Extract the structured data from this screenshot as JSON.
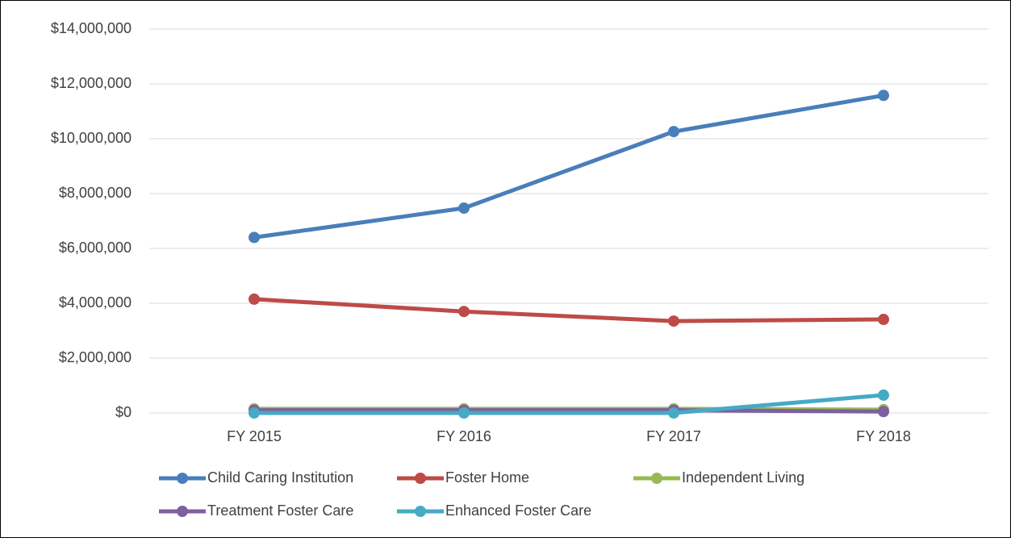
{
  "chart_data": {
    "type": "line",
    "categories": [
      "FY 2015",
      "FY 2016",
      "FY 2017",
      "FY 2018"
    ],
    "series": [
      {
        "name": "Child Caring Institution",
        "color": "#4a7ebb",
        "values": [
          6400000,
          7470000,
          10260000,
          11580000
        ]
      },
      {
        "name": "Foster Home",
        "color": "#be4b48",
        "values": [
          4150000,
          3700000,
          3350000,
          3410000
        ]
      },
      {
        "name": "Independent Living",
        "color": "#98b954",
        "values": [
          150000,
          150000,
          150000,
          120000
        ]
      },
      {
        "name": "Treatment Foster Care",
        "color": "#7d60a0",
        "values": [
          100000,
          100000,
          100000,
          50000
        ]
      },
      {
        "name": "Enhanced Foster Care",
        "color": "#46aac5",
        "values": [
          0,
          0,
          0,
          650000
        ]
      }
    ],
    "ylim": [
      0,
      14000000
    ],
    "yticks": [
      {
        "value": 0,
        "label": "$0"
      },
      {
        "value": 2000000,
        "label": "$2,000,000"
      },
      {
        "value": 4000000,
        "label": "$4,000,000"
      },
      {
        "value": 6000000,
        "label": "$6,000,000"
      },
      {
        "value": 8000000,
        "label": "$8,000,000"
      },
      {
        "value": 10000000,
        "label": "$10,000,000"
      },
      {
        "value": 12000000,
        "label": "$12,000,000"
      },
      {
        "value": 14000000,
        "label": "$14,000,000"
      }
    ],
    "grid": true,
    "legend": "bottom"
  }
}
